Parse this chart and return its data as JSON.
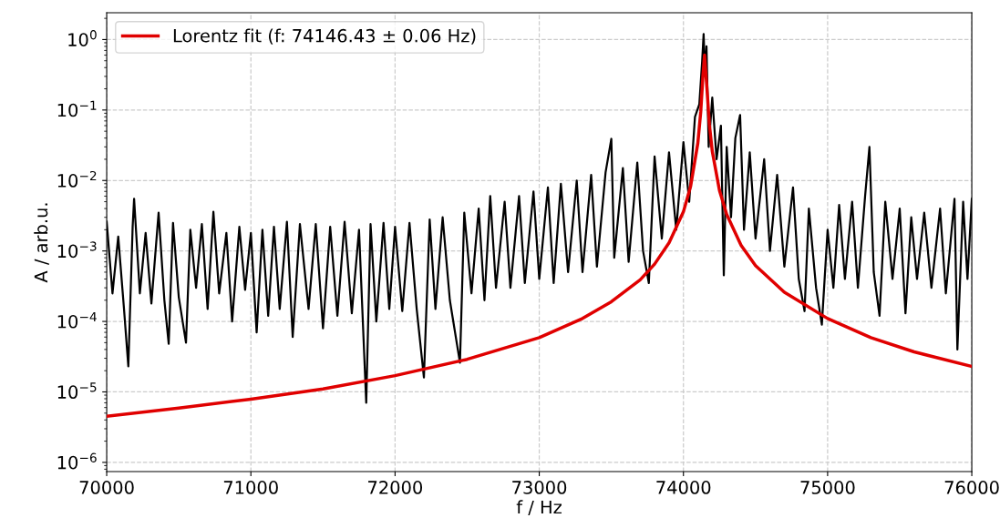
{
  "chart_data": {
    "type": "line",
    "xlabel": "f / Hz",
    "ylabel": "A / arb.u.",
    "log": "y",
    "grid": true,
    "legend": "top left",
    "line_style": "solid",
    "marker": "none",
    "xlim": [
      70000,
      76000
    ],
    "xticks": [
      70000,
      71000,
      72000,
      73000,
      74000,
      75000,
      76000
    ],
    "ylim": [
      7.4e-07,
      2.4
    ],
    "yticks": [
      {
        "value": 1e-06,
        "label": "10$^{−6}$"
      },
      {
        "value": 1e-05,
        "label": "10$^{−5}$"
      },
      {
        "value": 0.0001,
        "label": "10$^{−4}$"
      },
      {
        "value": 0.001,
        "label": "10$^{−3}$"
      },
      {
        "value": 0.01,
        "label": "10$^{−2}$"
      },
      {
        "value": 0.1,
        "label": "10$^{−1}$"
      },
      {
        "value": 1,
        "label": "10$^{0}$"
      }
    ],
    "series": [
      {
        "color": "#000000",
        "x": [
          70000,
          70040,
          70080,
          70120,
          70150,
          70180,
          70190,
          70230,
          70270,
          70310,
          70360,
          70400,
          70430,
          70460,
          70500,
          70550,
          70580,
          70620,
          70660,
          70700,
          70740,
          70780,
          70830,
          70870,
          70920,
          70960,
          71000,
          71040,
          71080,
          71120,
          71160,
          71200,
          71250,
          71290,
          71340,
          71400,
          71450,
          71500,
          71550,
          71600,
          71650,
          71700,
          71750,
          71800,
          71830,
          71870,
          71920,
          71960,
          72000,
          72050,
          72100,
          72150,
          72200,
          72240,
          72280,
          72330,
          72380,
          72450,
          72480,
          72530,
          72580,
          72620,
          72660,
          72700,
          72760,
          72800,
          72860,
          72900,
          72960,
          73000,
          73060,
          73100,
          73150,
          73200,
          73260,
          73300,
          73360,
          73400,
          73460,
          73500,
          73520,
          73580,
          73620,
          73680,
          73720,
          73760,
          73800,
          73850,
          73900,
          73950,
          74000,
          74040,
          74080,
          74110,
          74130,
          74140,
          74150,
          74160,
          74175,
          74200,
          74230,
          74260,
          74280,
          74300,
          74330,
          74360,
          74393,
          74420,
          74460,
          74500,
          74560,
          74600,
          74650,
          74700,
          74760,
          74800,
          74840,
          74870,
          74920,
          74960,
          75000,
          75040,
          75080,
          75120,
          75170,
          75210,
          75260,
          75290,
          75320,
          75360,
          75400,
          75450,
          75500,
          75540,
          75580,
          75620,
          75670,
          75720,
          75780,
          75820,
          75880,
          75900,
          75940,
          75970,
          76000
        ],
        "values": [
          0.0026,
          0.00025,
          0.0016,
          0.00015,
          2.3e-05,
          0.0022,
          0.0055,
          0.00025,
          0.0018,
          0.00018,
          0.0035,
          0.0002,
          4.8e-05,
          0.0025,
          0.00022,
          5e-05,
          0.002,
          0.0003,
          0.0024,
          0.00015,
          0.0036,
          0.00025,
          0.0018,
          0.0001,
          0.0022,
          0.00028,
          0.0018,
          7e-05,
          0.002,
          0.00012,
          0.0022,
          0.00015,
          0.0026,
          6e-05,
          0.0024,
          0.00015,
          0.0024,
          8e-05,
          0.0022,
          0.00012,
          0.0026,
          0.00013,
          0.002,
          7e-06,
          0.0024,
          0.0001,
          0.0025,
          0.00015,
          0.0022,
          0.00014,
          0.0025,
          0.00015,
          1.6e-05,
          0.0028,
          0.00015,
          0.003,
          0.0002,
          2.6e-05,
          0.0035,
          0.00025,
          0.004,
          0.0002,
          0.006,
          0.0003,
          0.005,
          0.0003,
          0.006,
          0.00035,
          0.007,
          0.0004,
          0.008,
          0.00035,
          0.009,
          0.0005,
          0.01,
          0.0005,
          0.012,
          0.0006,
          0.013,
          0.039,
          0.0008,
          0.015,
          0.0007,
          0.018,
          0.001,
          0.00035,
          0.022,
          0.0015,
          0.025,
          0.002,
          0.035,
          0.005,
          0.08,
          0.12,
          0.5,
          1.2,
          0.3,
          0.8,
          0.03,
          0.15,
          0.02,
          0.06,
          0.00045,
          0.03,
          0.003,
          0.04,
          0.085,
          0.002,
          0.025,
          0.0015,
          0.02,
          0.001,
          0.012,
          0.0006,
          0.008,
          0.0004,
          0.00014,
          0.004,
          0.0003,
          9e-05,
          0.002,
          0.0003,
          0.0045,
          0.0004,
          0.005,
          0.0003,
          0.006,
          0.03,
          0.0005,
          0.00012,
          0.005,
          0.0004,
          0.004,
          0.00013,
          0.003,
          0.0004,
          0.0035,
          0.0003,
          0.004,
          0.00025,
          0.0055,
          4e-05,
          0.005,
          0.0004,
          0.0055
        ]
      },
      {
        "name": "Lorentz fit (f: 74146.43 ± 0.06 Hz)",
        "color": "#e00000",
        "x": [
          70000,
          70500,
          71000,
          71500,
          72000,
          72500,
          73000,
          73300,
          73500,
          73700,
          73800,
          73900,
          74000,
          74050,
          74100,
          74120,
          74135,
          74146.43,
          74160,
          74180,
          74200,
          74250,
          74300,
          74400,
          74500,
          74700,
          75000,
          75300,
          75600,
          76000
        ],
        "values": [
          4.5e-06,
          5.9e-06,
          7.9e-06,
          1.1e-05,
          1.7e-05,
          2.9e-05,
          5.9e-05,
          0.00011,
          0.00019,
          0.00039,
          0.00065,
          0.0013,
          0.0036,
          0.0083,
          0.034,
          0.094,
          0.3,
          0.6,
          0.25,
          0.062,
          0.026,
          0.0072,
          0.0033,
          0.0012,
          0.00062,
          0.00026,
          0.00011,
          5.9e-05,
          3.7e-05,
          2.3e-05
        ]
      }
    ]
  }
}
